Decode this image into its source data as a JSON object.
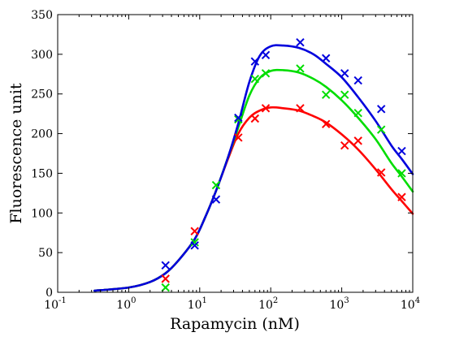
{
  "chart_data": {
    "type": "scatter",
    "xlabel": "Rapamycin (nM)",
    "ylabel": "Fluorescence unit",
    "xscale": "log",
    "xlim": [
      0.1,
      10000
    ],
    "ylim": [
      0,
      350
    ],
    "x_ticks": [
      0.1,
      1,
      10,
      100,
      1000,
      10000
    ],
    "x_tick_labels": [
      {
        "base": "10",
        "exp": "-1"
      },
      {
        "base": "10",
        "exp": "0"
      },
      {
        "base": "10",
        "exp": "1"
      },
      {
        "base": "10",
        "exp": "2"
      },
      {
        "base": "10",
        "exp": "3"
      },
      {
        "base": "10",
        "exp": "4"
      }
    ],
    "y_ticks": [
      0,
      50,
      100,
      150,
      200,
      250,
      300,
      350
    ],
    "y_tick_labels": [
      "0",
      "50",
      "100",
      "150",
      "200",
      "250",
      "300",
      "350"
    ],
    "grid": false,
    "marker": "x",
    "series": [
      {
        "color": "#ff0000",
        "points": [
          [
            3.3,
            17
          ],
          [
            8.5,
            77
          ],
          [
            35,
            195
          ],
          [
            60,
            219
          ],
          [
            85,
            232
          ],
          [
            260,
            232
          ],
          [
            600,
            212
          ],
          [
            1100,
            185
          ],
          [
            1700,
            191
          ],
          [
            3600,
            151
          ],
          [
            7000,
            120
          ]
        ],
        "fit_curve": [
          [
            0.33,
            2
          ],
          [
            1,
            6
          ],
          [
            2,
            13
          ],
          [
            3.3,
            24
          ],
          [
            5,
            40
          ],
          [
            8.5,
            67
          ],
          [
            12,
            95
          ],
          [
            17,
            128
          ],
          [
            25,
            168
          ],
          [
            35,
            200
          ],
          [
            50,
            220
          ],
          [
            70,
            229
          ],
          [
            100,
            233
          ],
          [
            150,
            232
          ],
          [
            250,
            229
          ],
          [
            400,
            222
          ],
          [
            600,
            214
          ],
          [
            1000,
            199
          ],
          [
            1700,
            180
          ],
          [
            3000,
            155
          ],
          [
            5000,
            130
          ],
          [
            7000,
            115
          ],
          [
            10000,
            99
          ]
        ]
      },
      {
        "color": "#00dd00",
        "points": [
          [
            3.3,
            6
          ],
          [
            8.5,
            63
          ],
          [
            17,
            135
          ],
          [
            35,
            218
          ],
          [
            60,
            269
          ],
          [
            85,
            276
          ],
          [
            260,
            282
          ],
          [
            600,
            249
          ],
          [
            1100,
            249
          ],
          [
            1700,
            226
          ],
          [
            3600,
            205
          ],
          [
            7000,
            150
          ]
        ],
        "fit_curve": [
          [
            0.33,
            2
          ],
          [
            1,
            6
          ],
          [
            2,
            13
          ],
          [
            3.3,
            24
          ],
          [
            5,
            40
          ],
          [
            8.5,
            67
          ],
          [
            12,
            95
          ],
          [
            17,
            128
          ],
          [
            25,
            170
          ],
          [
            35,
            208
          ],
          [
            50,
            248
          ],
          [
            70,
            270
          ],
          [
            100,
            279
          ],
          [
            150,
            280
          ],
          [
            250,
            277
          ],
          [
            400,
            269
          ],
          [
            600,
            259
          ],
          [
            1000,
            242
          ],
          [
            1700,
            220
          ],
          [
            3000,
            193
          ],
          [
            5000,
            163
          ],
          [
            7000,
            146
          ],
          [
            10000,
            127
          ]
        ]
      },
      {
        "color": "#0000dd",
        "points": [
          [
            3.3,
            34
          ],
          [
            8.5,
            59
          ],
          [
            17,
            117
          ],
          [
            35,
            220
          ],
          [
            60,
            291
          ],
          [
            85,
            299
          ],
          [
            260,
            315
          ],
          [
            600,
            295
          ],
          [
            1100,
            276
          ],
          [
            1700,
            267
          ],
          [
            3600,
            231
          ],
          [
            7000,
            178
          ]
        ],
        "fit_curve": [
          [
            0.33,
            2
          ],
          [
            1,
            6
          ],
          [
            2,
            13
          ],
          [
            3.3,
            24
          ],
          [
            5,
            40
          ],
          [
            8.5,
            67
          ],
          [
            12,
            95
          ],
          [
            17,
            128
          ],
          [
            25,
            170
          ],
          [
            35,
            213
          ],
          [
            50,
            265
          ],
          [
            70,
            298
          ],
          [
            100,
            310
          ],
          [
            150,
            311
          ],
          [
            250,
            308
          ],
          [
            400,
            300
          ],
          [
            600,
            288
          ],
          [
            1000,
            271
          ],
          [
            1700,
            246
          ],
          [
            3000,
            216
          ],
          [
            5000,
            185
          ],
          [
            7000,
            168
          ],
          [
            10000,
            149
          ]
        ]
      }
    ]
  }
}
